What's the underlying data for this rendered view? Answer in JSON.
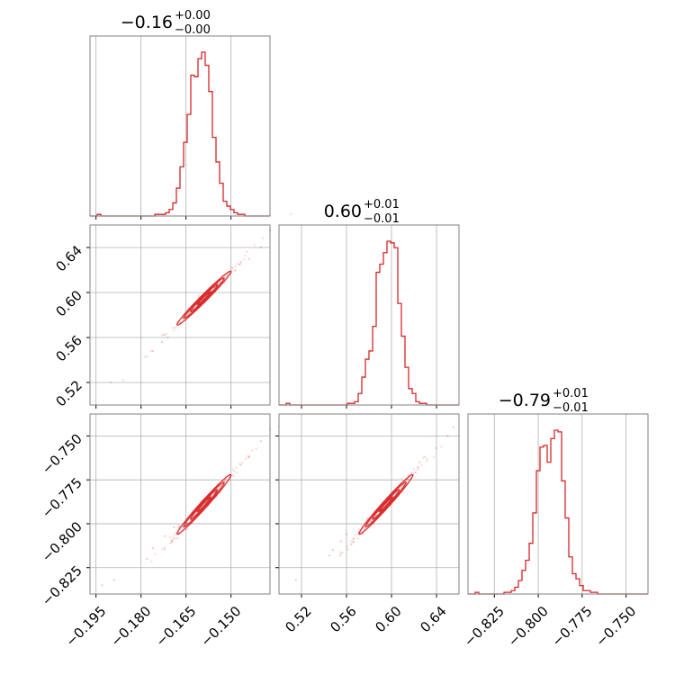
{
  "chart_data": {
    "type": "corner",
    "colors": {
      "accent": "#d62728",
      "grid": "#b0b0b0",
      "frame": "#808080"
    },
    "grid": true,
    "parameters": [
      {
        "title": {
          "median": "−0.16",
          "upper": "+0.00",
          "lower": "−0.00"
        },
        "range": [
          -0.197,
          -0.137
        ],
        "ticks": [
          -0.195,
          -0.18,
          -0.165,
          -0.15
        ],
        "tick_labels": [
          "−0.195",
          "−0.180",
          "−0.165",
          "−0.150"
        ]
      },
      {
        "title": {
          "median": "0.60",
          "upper": "+0.01",
          "lower": "−0.01"
        },
        "range": [
          0.5,
          0.66
        ],
        "ticks": [
          0.52,
          0.56,
          0.6,
          0.64
        ],
        "tick_labels": [
          "0.52",
          "0.56",
          "0.60",
          "0.64"
        ]
      },
      {
        "title": {
          "median": "−0.79",
          "upper": "+0.01",
          "lower": "−0.01"
        },
        "range": [
          -0.84,
          -0.7375
        ],
        "ticks": [
          -0.825,
          -0.8,
          -0.775,
          -0.75
        ],
        "tick_labels": [
          "−0.825",
          "−0.800",
          "−0.775",
          "−0.750"
        ]
      }
    ],
    "histograms": [
      {
        "param": 0,
        "bins": [
          -0.197,
          -0.137
        ],
        "counts": [
          0.0,
          0.0,
          0.01,
          0.0,
          0.0,
          0.0,
          0.0,
          0.0,
          0.0,
          0.0,
          0.0,
          0.0,
          0.0,
          0.0,
          0.0,
          0.0,
          0.0,
          0.0,
          0.01,
          0.01,
          0.01,
          0.02,
          0.04,
          0.08,
          0.17,
          0.3,
          0.45,
          0.62,
          0.86,
          0.85,
          0.96,
          1.0,
          0.92,
          0.76,
          0.48,
          0.33,
          0.2,
          0.09,
          0.06,
          0.04,
          0.02,
          0.01,
          0.01,
          0.0,
          0.0,
          0.0,
          0.0,
          0.0,
          0.0,
          0.0
        ]
      },
      {
        "param": 1,
        "bins": [
          0.5,
          0.66
        ],
        "counts": [
          0.0,
          0.0,
          0.01,
          0.0,
          0.0,
          0.0,
          0.0,
          0.0,
          0.0,
          0.0,
          0.0,
          0.0,
          0.0,
          0.0,
          0.0,
          0.0,
          0.0,
          0.0,
          0.0,
          0.01,
          0.01,
          0.02,
          0.07,
          0.17,
          0.28,
          0.33,
          0.48,
          0.81,
          0.86,
          0.93,
          1.0,
          0.99,
          0.96,
          0.62,
          0.42,
          0.23,
          0.1,
          0.07,
          0.02,
          0.01,
          0.01,
          0.0,
          0.0,
          0.0,
          0.0,
          0.0,
          0.0,
          0.0,
          0.0,
          0.0
        ]
      },
      {
        "param": 2,
        "bins": [
          -0.84,
          -0.7375
        ],
        "counts": [
          0.0,
          0.0,
          0.01,
          0.0,
          0.0,
          0.0,
          0.0,
          0.0,
          0.0,
          0.0,
          0.01,
          0.01,
          0.02,
          0.04,
          0.08,
          0.14,
          0.2,
          0.3,
          0.48,
          0.73,
          0.87,
          0.88,
          0.78,
          0.92,
          0.97,
          0.96,
          0.67,
          0.45,
          0.22,
          0.12,
          0.09,
          0.05,
          0.02,
          0.02,
          0.01,
          0.01,
          0.0,
          0.0,
          0.0,
          0.0,
          0.0,
          0.0,
          0.0,
          0.0,
          0.0,
          0.0,
          0.0,
          0.0,
          0.0,
          0.0
        ]
      }
    ],
    "joint_2d": [
      {
        "x_param": 0,
        "y_param": 1,
        "center": [
          -0.159,
          0.595
        ],
        "sigma_x": 0.0045,
        "sigma_y": 0.012,
        "correlation": 0.985,
        "contour_levels_sigma": [
          0.5,
          1.0,
          1.5,
          2.0
        ],
        "outlier_points": [
          [
            -0.19,
            0.52
          ],
          [
            -0.186,
            0.522
          ],
          [
            -0.176,
            0.548
          ],
          [
            -0.178,
            0.543
          ],
          [
            -0.14,
            0.64
          ],
          [
            -0.137,
            0.655
          ],
          [
            -0.144,
            0.63
          ],
          [
            -0.171,
            0.56
          ],
          [
            -0.147,
            0.625
          ],
          [
            -0.173,
            0.556
          ]
        ]
      },
      {
        "x_param": 0,
        "y_param": 2,
        "center": [
          -0.159,
          -0.789
        ],
        "sigma_x": 0.0045,
        "sigma_y": 0.0085,
        "correlation": 0.985,
        "contour_levels_sigma": [
          0.5,
          1.0,
          1.5,
          2.0
        ],
        "outlier_points": [
          [
            -0.193,
            -0.835
          ],
          [
            -0.189,
            -0.832
          ],
          [
            -0.176,
            -0.814
          ],
          [
            -0.178,
            -0.82
          ],
          [
            -0.14,
            -0.753
          ],
          [
            -0.137,
            -0.746
          ],
          [
            -0.144,
            -0.762
          ],
          [
            -0.172,
            -0.807
          ],
          [
            -0.147,
            -0.766
          ],
          [
            -0.169,
            -0.802
          ]
        ]
      },
      {
        "x_param": 1,
        "y_param": 2,
        "center": [
          0.595,
          -0.789
        ],
        "sigma_x": 0.012,
        "sigma_y": 0.0085,
        "correlation": 0.985,
        "contour_levels_sigma": [
          0.5,
          1.0,
          1.5,
          2.0
        ],
        "outlier_points": [
          [
            0.515,
            -0.832
          ],
          [
            0.548,
            -0.815
          ],
          [
            0.545,
            -0.818
          ],
          [
            0.64,
            -0.757
          ],
          [
            0.655,
            -0.745
          ],
          [
            0.63,
            -0.762
          ],
          [
            0.555,
            -0.81
          ],
          [
            0.625,
            -0.765
          ],
          [
            0.56,
            -0.806
          ],
          [
            0.65,
            -0.75
          ]
        ]
      }
    ]
  }
}
